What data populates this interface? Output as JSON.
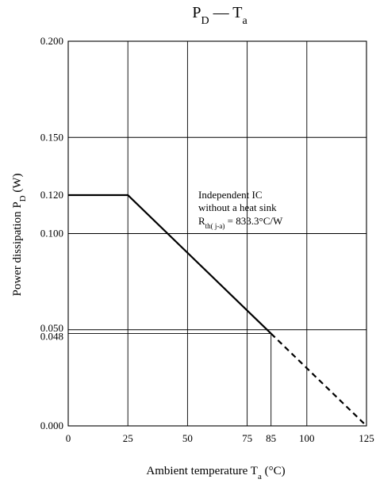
{
  "chart_data": {
    "type": "line",
    "title": {
      "main": "P",
      "main_sub": "D",
      "sep": " — ",
      "second": "T",
      "second_sub": "a"
    },
    "xlabel": {
      "text": "Ambient temperature  T",
      "sub": "a",
      "unit": "  (°C)"
    },
    "ylabel": {
      "text": "Power dissipation  P",
      "sub": "D",
      "unit": "  (W)"
    },
    "xlim": [
      0,
      125
    ],
    "ylim": [
      0,
      0.2
    ],
    "x_ticks": [
      {
        "value": 0,
        "label": "0"
      },
      {
        "value": 25,
        "label": "25"
      },
      {
        "value": 50,
        "label": "50"
      },
      {
        "value": 75,
        "label": "75"
      },
      {
        "value": 85,
        "label": "85"
      },
      {
        "value": 100,
        "label": "100"
      },
      {
        "value": 125,
        "label": "125"
      }
    ],
    "y_ticks": [
      {
        "value": 0,
        "label": "0.000"
      },
      {
        "value": 0.048,
        "label": "0.048"
      },
      {
        "value": 0.05,
        "label": "0.050"
      },
      {
        "value": 0.1,
        "label": "0.100"
      },
      {
        "value": 0.12,
        "label": "0.120"
      },
      {
        "value": 0.15,
        "label": "0.150"
      },
      {
        "value": 0.2,
        "label": "0.200"
      }
    ],
    "x_grid": [
      25,
      50,
      75,
      100
    ],
    "y_grid": [
      0.05,
      0.1,
      0.15
    ],
    "marker_point": {
      "x": 85,
      "y": 0.048
    },
    "series": [
      {
        "style": "solid",
        "points": [
          [
            0,
            0.12
          ],
          [
            25,
            0.12
          ],
          [
            85,
            0.048
          ]
        ]
      },
      {
        "style": "dashed",
        "points": [
          [
            85,
            0.048
          ],
          [
            125,
            0
          ]
        ]
      }
    ],
    "annotation": {
      "line1": "Independent IC",
      "line2": "without a heat sink",
      "line3_main": "R",
      "line3_sub": "th( j-a)",
      "line3_rest": " = 833.3°C/W"
    }
  }
}
